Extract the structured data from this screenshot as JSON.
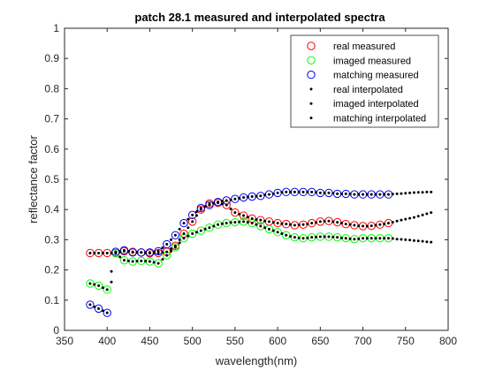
{
  "chart_data": {
    "type": "scatter",
    "title": "patch 28.1 measured and interpolated spectra",
    "xlabel": "wavelength(nm)",
    "ylabel": "reflectance factor",
    "xlim": [
      350,
      800
    ],
    "ylim": [
      0,
      1
    ],
    "xticks": [
      "350",
      "400",
      "450",
      "500",
      "550",
      "600",
      "650",
      "700",
      "750",
      "800"
    ],
    "yticks": [
      "0",
      "0.1",
      "0.2",
      "0.3",
      "0.4",
      "0.5",
      "0.6",
      "0.7",
      "0.8",
      "0.9",
      "1"
    ],
    "grid": false,
    "legend_position": "top-right",
    "x_measured": [
      380,
      390,
      400,
      410,
      420,
      430,
      440,
      450,
      460,
      470,
      480,
      490,
      500,
      510,
      520,
      530,
      540,
      550,
      560,
      570,
      580,
      590,
      600,
      610,
      620,
      630,
      640,
      650,
      660,
      670,
      680,
      690,
      700,
      710,
      720,
      730
    ],
    "x_interpolated": [
      380,
      385,
      390,
      395,
      400,
      405,
      410,
      415,
      420,
      425,
      430,
      435,
      440,
      445,
      450,
      455,
      460,
      465,
      470,
      475,
      480,
      485,
      490,
      495,
      500,
      505,
      510,
      515,
      520,
      525,
      530,
      535,
      540,
      545,
      550,
      555,
      560,
      565,
      570,
      575,
      580,
      585,
      590,
      595,
      600,
      605,
      610,
      615,
      620,
      625,
      630,
      635,
      640,
      645,
      650,
      655,
      660,
      665,
      670,
      675,
      680,
      685,
      690,
      695,
      700,
      705,
      710,
      715,
      720,
      725,
      730,
      735,
      740,
      745,
      750,
      755,
      760,
      765,
      770,
      775,
      780
    ],
    "series": [
      {
        "name": "real measured",
        "marker": "circle",
        "color": "#ff0000",
        "values": [
          0.256,
          0.256,
          0.256,
          0.256,
          0.262,
          0.26,
          0.258,
          0.255,
          0.256,
          0.26,
          0.28,
          0.32,
          0.36,
          0.4,
          0.42,
          0.422,
          0.415,
          0.39,
          0.38,
          0.37,
          0.365,
          0.36,
          0.355,
          0.352,
          0.348,
          0.35,
          0.355,
          0.36,
          0.362,
          0.358,
          0.352,
          0.348,
          0.345,
          0.346,
          0.35,
          0.355
        ]
      },
      {
        "name": "imaged measured",
        "marker": "circle",
        "color": "#00ff00",
        "values": [
          0.155,
          0.148,
          0.135,
          0.255,
          0.232,
          0.228,
          0.23,
          0.228,
          0.222,
          0.248,
          0.275,
          0.305,
          0.32,
          0.33,
          0.34,
          0.35,
          0.355,
          0.358,
          0.36,
          0.355,
          0.345,
          0.335,
          0.325,
          0.315,
          0.308,
          0.305,
          0.308,
          0.31,
          0.31,
          0.308,
          0.305,
          0.302,
          0.305,
          0.305,
          0.305,
          0.305
        ]
      },
      {
        "name": "matching measured",
        "marker": "circle",
        "color": "#0000ff",
        "values": [
          0.085,
          0.072,
          0.058,
          0.26,
          0.265,
          0.258,
          0.258,
          0.258,
          0.262,
          0.285,
          0.315,
          0.355,
          0.382,
          0.405,
          0.415,
          0.425,
          0.43,
          0.435,
          0.44,
          0.443,
          0.445,
          0.45,
          0.455,
          0.458,
          0.458,
          0.458,
          0.458,
          0.455,
          0.455,
          0.452,
          0.452,
          0.45,
          0.45,
          0.45,
          0.45,
          0.45
        ]
      },
      {
        "name": "real interpolated",
        "marker": "dot",
        "color": "#000000",
        "values": [
          0.256,
          0.256,
          0.256,
          0.256,
          0.256,
          0.256,
          0.256,
          0.259,
          0.262,
          0.261,
          0.26,
          0.259,
          0.258,
          0.256,
          0.255,
          0.256,
          0.256,
          0.258,
          0.26,
          0.27,
          0.28,
          0.3,
          0.32,
          0.34,
          0.36,
          0.38,
          0.4,
          0.41,
          0.42,
          0.421,
          0.422,
          0.418,
          0.415,
          0.402,
          0.39,
          0.385,
          0.38,
          0.375,
          0.37,
          0.367,
          0.365,
          0.362,
          0.36,
          0.357,
          0.355,
          0.353,
          0.352,
          0.35,
          0.348,
          0.349,
          0.35,
          0.352,
          0.355,
          0.357,
          0.36,
          0.361,
          0.362,
          0.36,
          0.358,
          0.355,
          0.352,
          0.35,
          0.348,
          0.346,
          0.345,
          0.345,
          0.346,
          0.348,
          0.35,
          0.352,
          0.355,
          0.358,
          0.362,
          0.365,
          0.368,
          0.371,
          0.374,
          0.378,
          0.382,
          0.386,
          0.39
        ]
      },
      {
        "name": "imaged interpolated",
        "marker": "dot",
        "color": "#000000",
        "values": [
          0.155,
          0.152,
          0.148,
          0.141,
          0.135,
          0.195,
          0.255,
          0.243,
          0.232,
          0.23,
          0.228,
          0.229,
          0.23,
          0.229,
          0.228,
          0.225,
          0.222,
          0.235,
          0.248,
          0.262,
          0.275,
          0.29,
          0.305,
          0.312,
          0.32,
          0.325,
          0.33,
          0.335,
          0.34,
          0.345,
          0.35,
          0.353,
          0.355,
          0.357,
          0.358,
          0.359,
          0.36,
          0.358,
          0.355,
          0.35,
          0.345,
          0.34,
          0.335,
          0.33,
          0.325,
          0.32,
          0.315,
          0.311,
          0.308,
          0.306,
          0.305,
          0.306,
          0.308,
          0.309,
          0.31,
          0.31,
          0.31,
          0.309,
          0.308,
          0.306,
          0.305,
          0.303,
          0.302,
          0.303,
          0.305,
          0.305,
          0.305,
          0.305,
          0.305,
          0.305,
          0.305,
          0.304,
          0.302,
          0.301,
          0.3,
          0.299,
          0.297,
          0.296,
          0.295,
          0.293,
          0.292
        ]
      },
      {
        "name": "matching interpolated",
        "marker": "dot",
        "color": "#000000",
        "values": [
          0.085,
          0.078,
          0.072,
          0.065,
          0.058,
          0.16,
          0.26,
          0.262,
          0.265,
          0.262,
          0.258,
          0.258,
          0.258,
          0.258,
          0.258,
          0.26,
          0.262,
          0.273,
          0.285,
          0.3,
          0.315,
          0.335,
          0.355,
          0.368,
          0.382,
          0.393,
          0.405,
          0.41,
          0.415,
          0.42,
          0.425,
          0.428,
          0.43,
          0.432,
          0.435,
          0.437,
          0.44,
          0.442,
          0.443,
          0.444,
          0.445,
          0.448,
          0.45,
          0.452,
          0.455,
          0.457,
          0.458,
          0.458,
          0.458,
          0.458,
          0.458,
          0.458,
          0.458,
          0.457,
          0.455,
          0.455,
          0.455,
          0.454,
          0.452,
          0.452,
          0.452,
          0.451,
          0.45,
          0.45,
          0.45,
          0.45,
          0.45,
          0.45,
          0.45,
          0.45,
          0.45,
          0.451,
          0.452,
          0.453,
          0.454,
          0.455,
          0.456,
          0.457,
          0.457,
          0.458,
          0.458
        ]
      }
    ]
  }
}
